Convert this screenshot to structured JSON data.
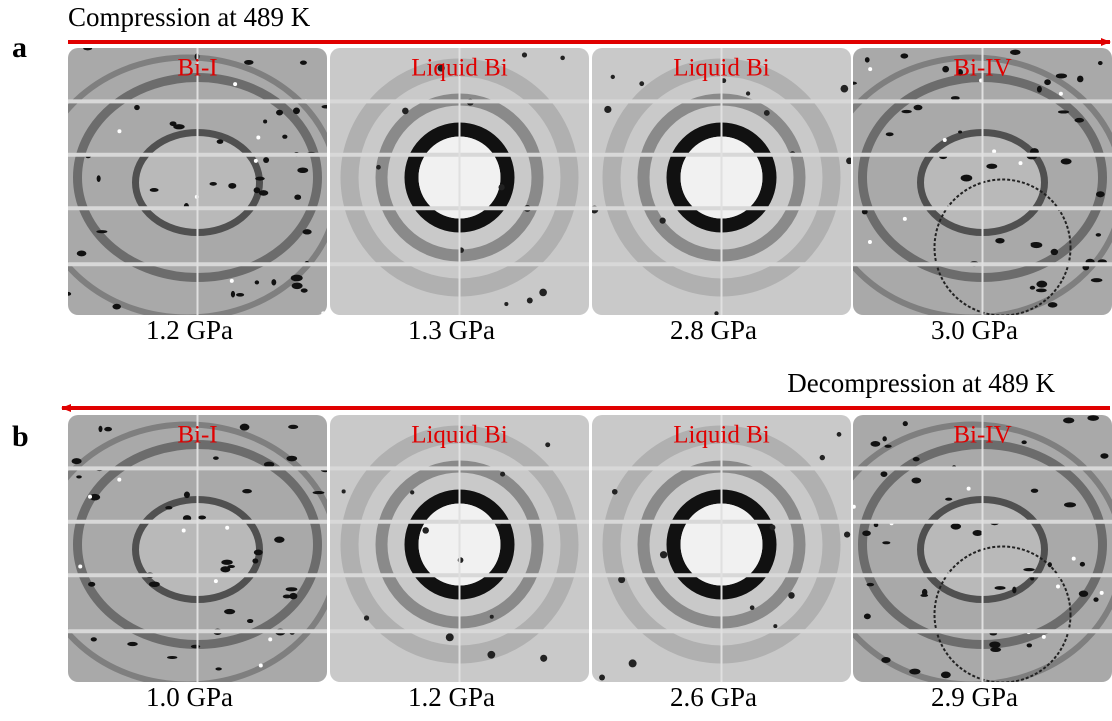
{
  "panels": [
    {
      "label": "a",
      "arrow_label": "Compression at 489 K",
      "images": [
        {
          "phase": "Bi-I",
          "pressure": "1.2 GPa"
        },
        {
          "phase": "Liquid Bi",
          "pressure": "1.3 GPa"
        },
        {
          "phase": "Liquid Bi",
          "pressure": "2.8 GPa"
        },
        {
          "phase": "Bi-IV",
          "pressure": "3.0 GPa"
        }
      ]
    },
    {
      "label": "b",
      "arrow_label": "Decompression at 489 K",
      "images": [
        {
          "phase": "Bi-I",
          "pressure": "1.0 GPa"
        },
        {
          "phase": "Liquid Bi",
          "pressure": "1.2 GPa"
        },
        {
          "phase": "Liquid Bi",
          "pressure": "2.6 GPa"
        },
        {
          "phase": "Bi-IV",
          "pressure": "2.9 GPa"
        }
      ]
    }
  ]
}
